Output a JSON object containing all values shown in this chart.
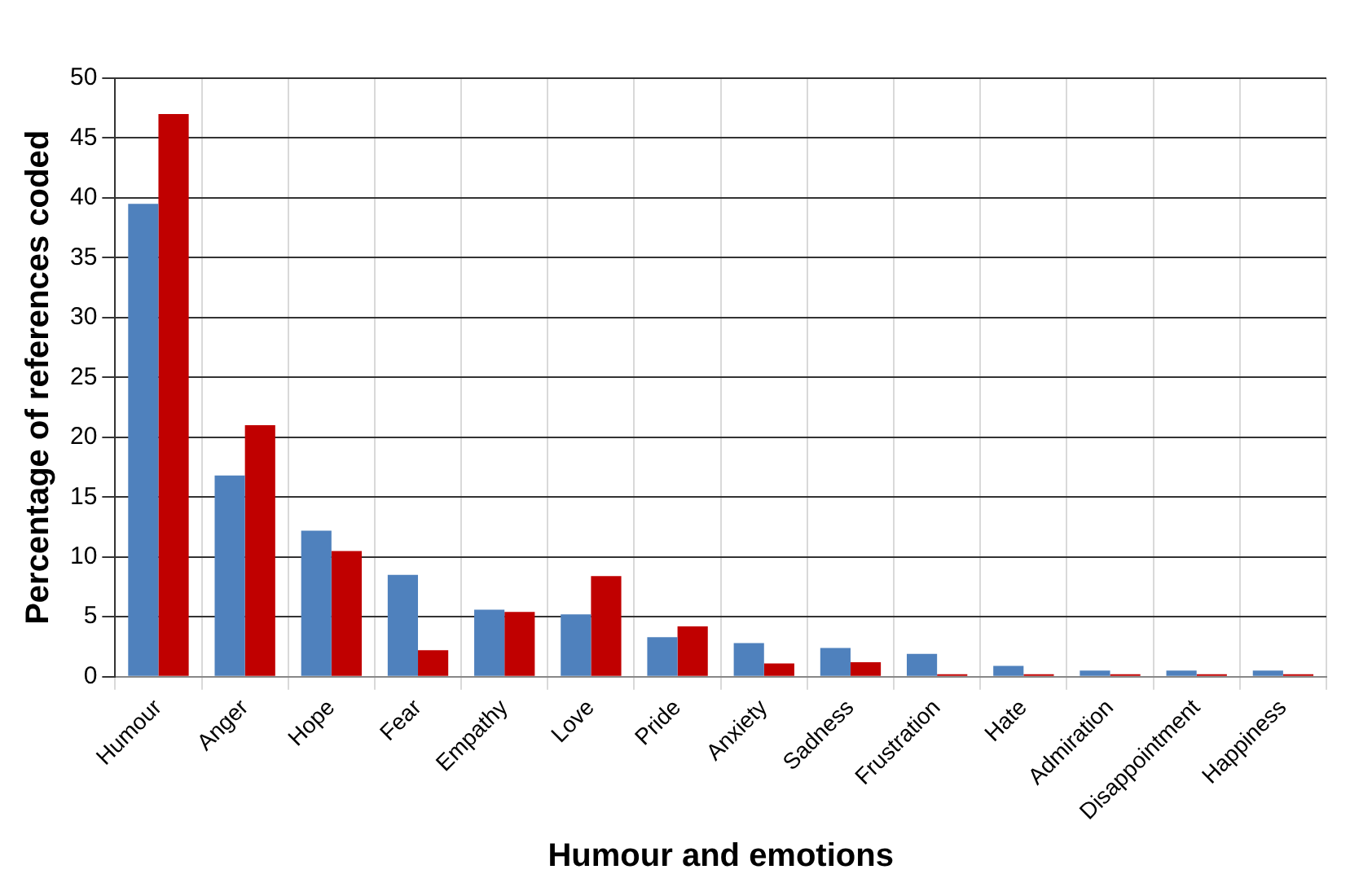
{
  "chart_data": {
    "type": "bar",
    "xlabel": "Humour and emotions",
    "ylabel": "Percentage of references coded",
    "categories": [
      "Humour",
      "Anger",
      "Hope",
      "Fear",
      "Empathy",
      "Love",
      "Pride",
      "Anxiety",
      "Sadness",
      "Frustration",
      "Hate",
      "Admiration",
      "Disappointment",
      "Happiness"
    ],
    "series": [
      {
        "color": "#4f81bd",
        "values": [
          39.5,
          16.8,
          12.2,
          8.5,
          5.6,
          5.2,
          3.3,
          2.8,
          2.4,
          1.9,
          0.9,
          0.5,
          0.5,
          0.5
        ]
      },
      {
        "color": "#c00000",
        "values": [
          47,
          21,
          10.5,
          2.2,
          5.4,
          8.4,
          4.2,
          1.1,
          1.2,
          0.2,
          0.2,
          0.2,
          0.2,
          0.2
        ]
      }
    ],
    "ylim": [
      0,
      50
    ],
    "yticks": [
      0,
      5,
      10,
      15,
      20,
      25,
      30,
      35,
      40,
      45,
      50
    ],
    "grid": true,
    "legend": false
  }
}
